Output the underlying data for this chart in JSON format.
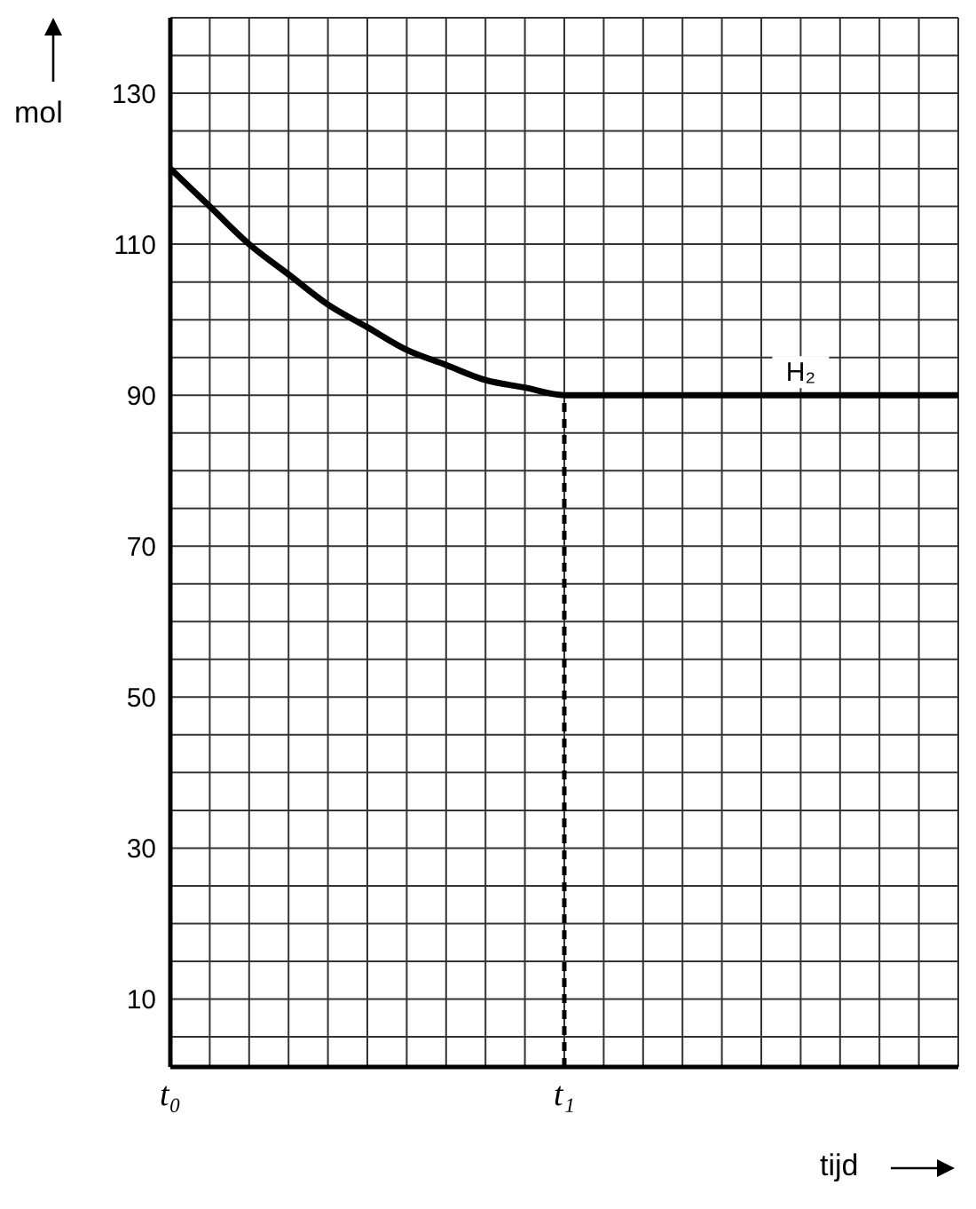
{
  "chart_data": {
    "type": "line",
    "xlabel": "tijd",
    "ylabel": "mol",
    "categories": [
      "t₀",
      null,
      null,
      null,
      null,
      null,
      null,
      null,
      null,
      null,
      "t₁",
      null,
      null,
      null,
      null,
      null,
      null,
      null,
      null,
      null,
      null
    ],
    "series": [
      {
        "name": "H₂",
        "color": "#000000",
        "values": [
          120,
          115,
          110,
          106,
          102,
          99,
          96,
          94,
          92,
          91,
          90,
          90,
          90,
          90,
          90,
          90,
          90,
          90,
          90,
          90,
          90
        ]
      }
    ],
    "ylim": [
      1,
      140
    ],
    "yticks": [
      {
        "value": 5,
        "label": null
      },
      10,
      {
        "value": 15,
        "label": null
      },
      {
        "value": 20,
        "label": null
      },
      {
        "value": 25,
        "label": null
      },
      30,
      {
        "value": 35,
        "label": null
      },
      {
        "value": 40,
        "label": null
      },
      {
        "value": 45,
        "label": null
      },
      50,
      {
        "value": 55,
        "label": null
      },
      {
        "value": 60,
        "label": null
      },
      {
        "value": 65,
        "label": null
      },
      70,
      {
        "value": 75,
        "label": null
      },
      {
        "value": 80,
        "label": null
      },
      {
        "value": 85,
        "label": null
      },
      90,
      {
        "value": 95,
        "label": null
      },
      {
        "value": 100,
        "label": null
      },
      {
        "value": 105,
        "label": null
      },
      110,
      {
        "value": 115,
        "label": null
      },
      {
        "value": 120,
        "label": null
      },
      {
        "value": 125,
        "label": null
      },
      130,
      {
        "value": 135,
        "label": null
      },
      {
        "value": 140,
        "label": null
      }
    ],
    "grid": true,
    "ref_lines": [
      {
        "axis": "x",
        "value": "t₁",
        "color": "#000000",
        "line_style": "dashed"
      }
    ]
  }
}
